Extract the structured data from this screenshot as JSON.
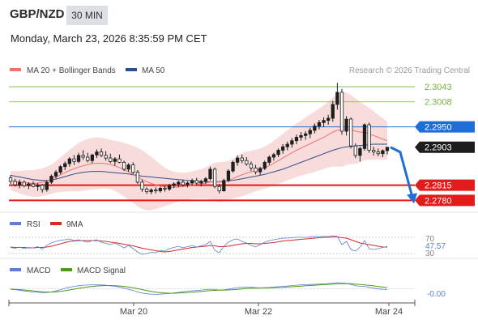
{
  "header": {
    "pair": "GBP/NZD",
    "timeframe": "30 MIN",
    "datetime": "Monday, March 23, 2026 8:35:59 PM CET"
  },
  "legend": {
    "ma20": "MA 20 + Bollinger Bands",
    "ma50": "MA 50",
    "copyright": "Research © 2026 Trading Central"
  },
  "colors": {
    "ma20": "#f2736e",
    "ma50": "#2c4f8c",
    "band_fill": "#f7d5d5",
    "resistance_green": "#77b043",
    "pivot_blue": "#1f6ed8",
    "support_red": "#e21b1b",
    "last_price_bg": "#1d1d1d",
    "candle_up": "#1e1e1e",
    "candle_down": "#ffffff",
    "rsi": "#5b7fd6",
    "rsi_ma": "#d42b2b",
    "macd": "#5b7fd6",
    "macd_signal": "#4a9a1e"
  },
  "levels": [
    {
      "value": 2.3043,
      "label": "2.3043",
      "kind": "resistance"
    },
    {
      "value": 2.3008,
      "label": "2.3008",
      "kind": "resistance"
    },
    {
      "value": 2.295,
      "label": "2.2950",
      "kind": "pivot"
    },
    {
      "value": 2.2903,
      "label": "2.2903",
      "kind": "last"
    },
    {
      "value": 2.2815,
      "label": "2.2815",
      "kind": "support"
    },
    {
      "value": 2.278,
      "label": "2.2780",
      "kind": "support"
    }
  ],
  "rsi_panel": {
    "legend_rsi": "RSI",
    "legend_ma": "9MA",
    "level_high": "70",
    "value": "47.57",
    "level_low": "30"
  },
  "macd_panel": {
    "legend_macd": "MACD",
    "legend_signal": "MACD Signal",
    "value": "-0.00"
  },
  "x_axis": {
    "ticks": [
      "Mar 20",
      "Mar 22",
      "Mar 24"
    ]
  },
  "chart_data": {
    "type": "candlestick",
    "instrument": "GBP/NZD",
    "interval": "30 MIN",
    "ylim": [
      2.276,
      2.306
    ],
    "ohlc": [
      [
        2.2832,
        2.2838,
        2.2818,
        2.2824
      ],
      [
        2.2824,
        2.283,
        2.2812,
        2.2816
      ],
      [
        2.2816,
        2.2828,
        2.2808,
        2.2822
      ],
      [
        2.2822,
        2.2826,
        2.281,
        2.2814
      ],
      [
        2.2814,
        2.2822,
        2.2806,
        2.2818
      ],
      [
        2.2818,
        2.2824,
        2.281,
        2.2812
      ],
      [
        2.2812,
        2.282,
        2.2802,
        2.2815
      ],
      [
        2.2815,
        2.2818,
        2.2798,
        2.2805
      ],
      [
        2.2805,
        2.2826,
        2.28,
        2.2822
      ],
      [
        2.2822,
        2.284,
        2.2818,
        2.2836
      ],
      [
        2.2836,
        2.285,
        2.283,
        2.2845
      ],
      [
        2.2845,
        2.2862,
        2.284,
        2.2858
      ],
      [
        2.2858,
        2.287,
        2.285,
        2.2865
      ],
      [
        2.2865,
        2.288,
        2.2858,
        2.2876
      ],
      [
        2.2876,
        2.2885,
        2.2862,
        2.287
      ],
      [
        2.287,
        2.289,
        2.2866,
        2.2884
      ],
      [
        2.2884,
        2.2896,
        2.2874,
        2.288
      ],
      [
        2.288,
        2.289,
        2.2868,
        2.2872
      ],
      [
        2.2872,
        2.2888,
        2.2866,
        2.2885
      ],
      [
        2.2885,
        2.2898,
        2.2878,
        2.2892
      ],
      [
        2.2892,
        2.29,
        2.288,
        2.2884
      ],
      [
        2.2884,
        2.2894,
        2.2872,
        2.2878
      ],
      [
        2.2878,
        2.2888,
        2.2866,
        2.287
      ],
      [
        2.287,
        2.288,
        2.286,
        2.2876
      ],
      [
        2.2876,
        2.2886,
        2.2866,
        2.2868
      ],
      [
        2.2868,
        2.2872,
        2.2848,
        2.2852
      ],
      [
        2.2852,
        2.2866,
        2.2846,
        2.2862
      ],
      [
        2.2862,
        2.2868,
        2.284,
        2.2845
      ],
      [
        2.2845,
        2.285,
        2.2818,
        2.2822
      ],
      [
        2.2822,
        2.2828,
        2.28,
        2.2806
      ],
      [
        2.2806,
        2.281,
        2.2795,
        2.28
      ],
      [
        2.28,
        2.2808,
        2.2794,
        2.2804
      ],
      [
        2.2804,
        2.281,
        2.2796,
        2.2802
      ],
      [
        2.2802,
        2.2812,
        2.2798,
        2.2808
      ],
      [
        2.2808,
        2.2814,
        2.28,
        2.2806
      ],
      [
        2.2806,
        2.2818,
        2.2802,
        2.2814
      ],
      [
        2.2814,
        2.2822,
        2.2808,
        2.2818
      ],
      [
        2.2818,
        2.2826,
        2.281,
        2.2822
      ],
      [
        2.2822,
        2.2828,
        2.2812,
        2.2816
      ],
      [
        2.2816,
        2.2824,
        2.281,
        2.282
      ],
      [
        2.282,
        2.283,
        2.2814,
        2.2826
      ],
      [
        2.2826,
        2.2832,
        2.2816,
        2.282
      ],
      [
        2.282,
        2.2828,
        2.2812,
        2.2824
      ],
      [
        2.2824,
        2.2834,
        2.2818,
        2.283
      ],
      [
        2.283,
        2.2858,
        2.2826,
        2.2852
      ],
      [
        2.2852,
        2.2856,
        2.2808,
        2.2812
      ],
      [
        2.2812,
        2.2818,
        2.2796,
        2.2802
      ],
      [
        2.2802,
        2.283,
        2.28,
        2.2826
      ],
      [
        2.2826,
        2.2852,
        2.2822,
        2.2848
      ],
      [
        2.2848,
        2.2872,
        2.2844,
        2.2868
      ],
      [
        2.2868,
        2.2884,
        2.286,
        2.2878
      ],
      [
        2.2878,
        2.2886,
        2.2866,
        2.2872
      ],
      [
        2.2872,
        2.288,
        2.286,
        2.2864
      ],
      [
        2.2864,
        2.287,
        2.2848,
        2.2855
      ],
      [
        2.2855,
        2.2862,
        2.284,
        2.2846
      ],
      [
        2.2846,
        2.2858,
        2.2838,
        2.2854
      ],
      [
        2.2854,
        2.2872,
        2.285,
        2.2868
      ],
      [
        2.2868,
        2.2884,
        2.2862,
        2.288
      ],
      [
        2.288,
        2.289,
        2.2872,
        2.2886
      ],
      [
        2.2886,
        2.29,
        2.288,
        2.2896
      ],
      [
        2.2896,
        2.291,
        2.2888,
        2.2904
      ],
      [
        2.2904,
        2.2916,
        2.2896,
        2.291
      ],
      [
        2.291,
        2.2924,
        2.2902,
        2.2918
      ],
      [
        2.2918,
        2.2932,
        2.291,
        2.2926
      ],
      [
        2.2926,
        2.2938,
        2.2918,
        2.293
      ],
      [
        2.293,
        2.294,
        2.292,
        2.2934
      ],
      [
        2.2934,
        2.2948,
        2.2924,
        2.2942
      ],
      [
        2.2942,
        2.2958,
        2.2935,
        2.2952
      ],
      [
        2.2952,
        2.2966,
        2.2944,
        2.296
      ],
      [
        2.296,
        2.2972,
        2.295,
        2.2965
      ],
      [
        2.2965,
        2.2978,
        2.2955,
        2.297
      ],
      [
        2.297,
        2.301,
        2.2962,
        2.3002
      ],
      [
        2.3002,
        2.3052,
        2.299,
        2.303
      ],
      [
        2.303,
        2.3038,
        2.2932,
        2.294
      ],
      [
        2.294,
        2.2975,
        2.293,
        2.2968
      ],
      [
        2.2968,
        2.2972,
        2.29,
        2.2906
      ],
      [
        2.2906,
        2.2912,
        2.2878,
        2.2884
      ],
      [
        2.2884,
        2.2905,
        2.287,
        2.29
      ],
      [
        2.29,
        2.2958,
        2.2895,
        2.2955
      ],
      [
        2.2955,
        2.296,
        2.289,
        2.2896
      ],
      [
        2.2896,
        2.2904,
        2.2884,
        2.2892
      ],
      [
        2.2892,
        2.29,
        2.2882,
        2.2888
      ],
      [
        2.2888,
        2.2898,
        2.288,
        2.2895
      ],
      [
        2.2895,
        2.2903,
        2.2886,
        2.2903
      ]
    ],
    "ma20": [
      2.2826,
      2.2824,
      2.2822,
      2.2821,
      2.282,
      2.2819,
      2.282,
      2.2822,
      2.2825,
      2.2829,
      2.2834,
      2.2839,
      2.2844,
      2.2849,
      2.2853,
      2.2857,
      2.286,
      2.2863,
      2.2865,
      2.2866,
      2.2866,
      2.2865,
      2.2863,
      2.286,
      2.2856,
      2.2851,
      2.2846,
      2.284,
      2.2834,
      2.2828,
      2.2823,
      2.2819,
      2.2816,
      2.2813,
      2.2811,
      2.281,
      2.281,
      2.2811,
      2.2812,
      2.2813,
      2.2815,
      2.2817,
      2.2818,
      2.282,
      2.2822,
      2.2823,
      2.2822,
      2.2823,
      2.2826,
      2.283,
      2.2835,
      2.2839,
      2.2843,
      2.2846,
      2.2849,
      2.2852,
      2.2856,
      2.286,
      2.2866,
      2.2872,
      2.2878,
      2.2884,
      2.289,
      2.2896,
      2.2901,
      2.2906,
      2.2911,
      2.2916,
      2.2921,
      2.2926,
      2.2932,
      2.2938,
      2.2942,
      2.2944,
      2.2946,
      2.2944,
      2.294,
      2.2938,
      2.2937,
      2.2934,
      2.293,
      2.2926,
      2.2922,
      2.2918
    ],
    "ma50": [
      2.2838,
      2.2836,
      2.2834,
      2.2832,
      2.283,
      2.2828,
      2.2827,
      2.2826,
      2.2826,
      2.2827,
      2.2829,
      2.2832,
      2.2835,
      2.2838,
      2.2841,
      2.2843,
      2.2845,
      2.2846,
      2.2847,
      2.2847,
      2.2847,
      2.2846,
      2.2845,
      2.2844,
      2.2843,
      2.2842,
      2.2841,
      2.2839,
      2.2838,
      2.2836,
      2.2835,
      2.2834,
      2.2833,
      2.2832,
      2.2831,
      2.283,
      2.2829,
      2.2828,
      2.2827,
      2.2826,
      2.2825,
      2.2824,
      2.2823,
      2.2823,
      2.2823,
      2.2823,
      2.2823,
      2.2824,
      2.2825,
      2.2826,
      2.2828,
      2.283,
      2.2832,
      2.2834,
      2.2836,
      2.2838,
      2.284,
      2.2843,
      2.2846,
      2.2849,
      2.2852,
      2.2856,
      2.286,
      2.2864,
      2.2868,
      2.2872,
      2.2876,
      2.288,
      2.2884,
      2.2888,
      2.2892,
      2.2896,
      2.2899,
      2.2902,
      2.2904,
      2.2905,
      2.2906,
      2.2907,
      2.2908,
      2.2909,
      2.291,
      2.291,
      2.291,
      2.291
    ],
    "bb_width": [
      0.0022,
      0.0024,
      0.0026,
      0.0028,
      0.003,
      0.0031,
      0.0032,
      0.0032,
      0.0033,
      0.0034,
      0.0036,
      0.004,
      0.0044,
      0.0048,
      0.0052,
      0.0056,
      0.0058,
      0.0059,
      0.006,
      0.006,
      0.0059,
      0.0058,
      0.0057,
      0.0058,
      0.006,
      0.0062,
      0.0064,
      0.0066,
      0.0068,
      0.0068,
      0.0066,
      0.0062,
      0.0056,
      0.005,
      0.0044,
      0.004,
      0.0036,
      0.0034,
      0.0032,
      0.0032,
      0.0032,
      0.0033,
      0.0034,
      0.0036,
      0.004,
      0.0044,
      0.0046,
      0.0046,
      0.0045,
      0.0046,
      0.0048,
      0.005,
      0.005,
      0.0049,
      0.0048,
      0.0048,
      0.0049,
      0.005,
      0.0052,
      0.0054,
      0.0056,
      0.0058,
      0.006,
      0.0062,
      0.0064,
      0.0066,
      0.0068,
      0.007,
      0.0072,
      0.0074,
      0.0076,
      0.008,
      0.0084,
      0.0086,
      0.0084,
      0.008,
      0.0076,
      0.007,
      0.0064,
      0.006,
      0.0056,
      0.0052,
      0.0048,
      0.0044
    ],
    "rsi_ylim": [
      20,
      80
    ],
    "rsi": [
      45,
      43,
      46,
      42,
      45,
      44,
      47,
      41,
      50,
      56,
      60,
      63,
      64,
      66,
      62,
      64,
      61,
      58,
      62,
      64,
      58,
      55,
      52,
      56,
      50,
      44,
      50,
      42,
      34,
      28,
      30,
      33,
      32,
      38,
      36,
      42,
      45,
      48,
      44,
      47,
      50,
      46,
      49,
      52,
      60,
      38,
      32,
      48,
      58,
      64,
      66,
      60,
      56,
      50,
      46,
      52,
      58,
      62,
      64,
      66,
      68,
      68,
      69,
      70,
      70,
      70,
      71,
      72,
      72,
      72,
      72,
      74,
      72,
      52,
      60,
      40,
      36,
      46,
      62,
      42,
      40,
      42,
      45,
      47.57
    ],
    "rsi_ma": [
      46,
      45,
      45,
      45,
      44,
      44,
      45,
      45,
      46,
      48,
      51,
      54,
      57,
      60,
      61,
      62,
      62,
      62,
      62,
      62,
      61,
      60,
      58,
      57,
      55,
      53,
      51,
      49,
      46,
      43,
      41,
      39,
      37,
      35,
      34,
      35,
      37,
      39,
      41,
      43,
      45,
      46,
      47,
      48,
      50,
      49,
      47,
      47,
      48,
      50,
      52,
      54,
      55,
      55,
      54,
      54,
      55,
      56,
      57,
      59,
      61,
      62,
      63,
      64,
      65,
      66,
      67,
      68,
      69,
      70,
      70,
      71,
      71,
      69,
      68,
      64,
      60,
      56,
      54,
      52,
      50,
      48,
      46,
      46
    ],
    "macd_ylim": [
      -1,
      1
    ],
    "macd": [
      -0.06,
      -0.1,
      -0.16,
      -0.24,
      -0.3,
      -0.35,
      -0.38,
      -0.42,
      -0.4,
      -0.34,
      -0.24,
      -0.1,
      0.04,
      0.16,
      0.26,
      0.32,
      0.38,
      0.4,
      0.42,
      0.43,
      0.41,
      0.37,
      0.32,
      0.26,
      0.18,
      0.06,
      -0.06,
      -0.2,
      -0.34,
      -0.46,
      -0.54,
      -0.58,
      -0.6,
      -0.58,
      -0.54,
      -0.5,
      -0.44,
      -0.38,
      -0.32,
      -0.26,
      -0.22,
      -0.18,
      -0.14,
      -0.1,
      -0.04,
      -0.08,
      -0.14,
      -0.12,
      -0.04,
      0.04,
      0.12,
      0.16,
      0.18,
      0.16,
      0.12,
      0.1,
      0.12,
      0.14,
      0.18,
      0.22,
      0.26,
      0.3,
      0.34,
      0.38,
      0.42,
      0.44,
      0.46,
      0.48,
      0.5,
      0.52,
      0.56,
      0.6,
      0.66,
      0.62,
      0.58,
      0.46,
      0.34,
      0.26,
      0.26,
      0.16,
      0.06,
      -0.02,
      -0.06,
      -0.08
    ],
    "macd_signal": [
      -0.04,
      -0.06,
      -0.09,
      -0.13,
      -0.18,
      -0.23,
      -0.28,
      -0.32,
      -0.35,
      -0.35,
      -0.33,
      -0.28,
      -0.21,
      -0.13,
      -0.04,
      0.04,
      0.12,
      0.19,
      0.25,
      0.3,
      0.33,
      0.35,
      0.35,
      0.33,
      0.3,
      0.25,
      0.18,
      0.1,
      0.01,
      -0.09,
      -0.19,
      -0.28,
      -0.36,
      -0.42,
      -0.46,
      -0.48,
      -0.48,
      -0.46,
      -0.43,
      -0.4,
      -0.36,
      -0.32,
      -0.28,
      -0.24,
      -0.2,
      -0.17,
      -0.16,
      -0.15,
      -0.13,
      -0.1,
      -0.06,
      -0.02,
      0.02,
      0.05,
      0.07,
      0.08,
      0.09,
      0.1,
      0.12,
      0.14,
      0.16,
      0.19,
      0.22,
      0.25,
      0.28,
      0.32,
      0.35,
      0.38,
      0.41,
      0.44,
      0.47,
      0.5,
      0.53,
      0.55,
      0.56,
      0.54,
      0.5,
      0.46,
      0.42,
      0.37,
      0.31,
      0.24,
      0.18,
      0.12
    ]
  }
}
